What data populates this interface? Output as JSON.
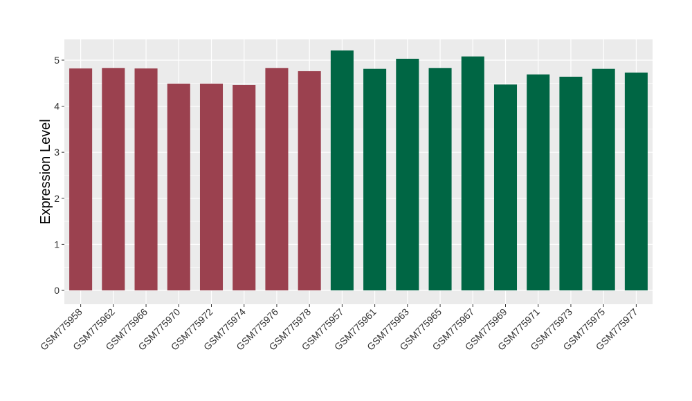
{
  "chart_data": {
    "type": "bar",
    "title": "",
    "xlabel": "",
    "ylabel": "Expression Level",
    "ylim": [
      -0.3,
      5.45
    ],
    "yticks": [
      0,
      1,
      2,
      3,
      4,
      5
    ],
    "grid": true,
    "categories": [
      "GSM775958",
      "GSM775962",
      "GSM775966",
      "GSM775970",
      "GSM775972",
      "GSM775974",
      "GSM775976",
      "GSM775978",
      "GSM775957",
      "GSM775961",
      "GSM775963",
      "GSM775965",
      "GSM775967",
      "GSM775969",
      "GSM775971",
      "GSM775973",
      "GSM775975",
      "GSM775977"
    ],
    "values": [
      4.82,
      4.83,
      4.82,
      4.49,
      4.49,
      4.46,
      4.83,
      4.76,
      5.21,
      4.81,
      5.03,
      4.83,
      5.08,
      4.47,
      4.69,
      4.64,
      4.81,
      4.73
    ],
    "groups": [
      0,
      0,
      0,
      0,
      0,
      0,
      0,
      0,
      1,
      1,
      1,
      1,
      1,
      1,
      1,
      1,
      1,
      1
    ],
    "group_colors": [
      "#9b414f",
      "#006644"
    ],
    "panel_color": "#ebebeb",
    "grid_color": "#ffffff"
  }
}
